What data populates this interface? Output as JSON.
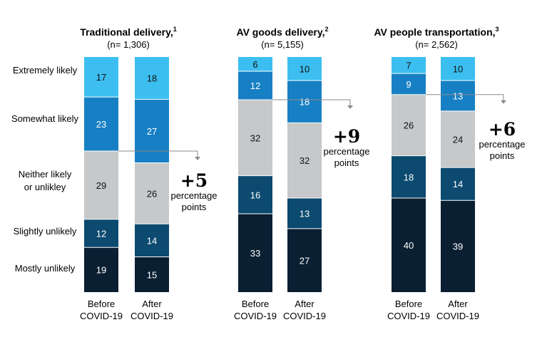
{
  "colors": {
    "extremely_likely": "#3cbff0",
    "somewhat_likely": "#1780c4",
    "neither": "#c6c8ca",
    "slightly_unlikely": "#0c4a70",
    "mostly_unlikely": "#0b1f33",
    "connector": "#8a8a8a"
  },
  "chart_data": {
    "type": "bar",
    "stacked": true,
    "categories": [
      "Extremely likely",
      "Somewhat likely",
      "Neither likely or unlikley",
      "Slightly unlikely",
      "Mostly unlikely"
    ],
    "category_label_lines": [
      [
        "Extremely likely"
      ],
      [
        "Somewhat likely"
      ],
      [
        "Neither likely",
        "or unlikley"
      ],
      [
        "Slightly unlikely"
      ],
      [
        "Mostly unlikely"
      ]
    ],
    "groups": [
      {
        "title": "Traditional delivery,",
        "footnote": "1",
        "sample": "(n= 1,306)",
        "bars": [
          {
            "label": [
              "Before",
              "COVID-19"
            ],
            "values": [
              17,
              23,
              29,
              12,
              19
            ]
          },
          {
            "label": [
              "After",
              "COVID-19"
            ],
            "values": [
              18,
              27,
              26,
              14,
              15
            ]
          }
        ],
        "change": {
          "value": "+5",
          "text": [
            "percentage",
            "points"
          ]
        }
      },
      {
        "title": "AV goods delivery,",
        "footnote": "2",
        "sample": "(n= 5,155)",
        "bars": [
          {
            "label": [
              "Before",
              "COVID-19"
            ],
            "values": [
              6,
              12,
              32,
              16,
              33
            ]
          },
          {
            "label": [
              "After",
              "COVID-19"
            ],
            "values": [
              10,
              18,
              32,
              13,
              27
            ]
          }
        ],
        "change": {
          "value": "+9",
          "text": [
            "percentage",
            "points"
          ]
        }
      },
      {
        "title": "AV people transportation,",
        "footnote": "3",
        "sample": "(n= 2,562)",
        "bars": [
          {
            "label": [
              "Before",
              "COVID-19"
            ],
            "values": [
              7,
              9,
              26,
              18,
              40
            ]
          },
          {
            "label": [
              "After",
              "COVID-19"
            ],
            "values": [
              10,
              13,
              24,
              14,
              39
            ]
          }
        ],
        "change": {
          "value": "+6",
          "text": [
            "percentage",
            "points"
          ]
        }
      }
    ]
  }
}
